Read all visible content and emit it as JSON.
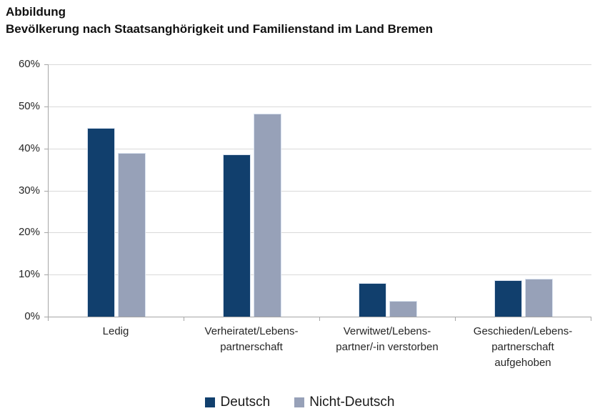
{
  "header": {
    "kicker": "Abbildung",
    "title": "Bevölkerung nach Staatsanghörigkeit und Familienstand im Land Bremen"
  },
  "colors": {
    "deutsch": "#113f6d",
    "nicht_deutsch": "#97a1b8",
    "bar_border": "#d9e2ef",
    "gridline": "#d9d9d9",
    "axis": "#a6a6a6"
  },
  "chart_data": {
    "type": "bar",
    "title": "Bevölkerung nach Staatsanghörigkeit und Familienstand im Land Bremen",
    "categories": [
      [
        "Ledig"
      ],
      [
        "Verheiratet/Lebens-",
        "partnerschaft"
      ],
      [
        "Verwitwet/Lebens-",
        "partner/-in verstorben"
      ],
      [
        "Geschieden/Lebens-",
        "partnerschaft",
        "aufgehoben"
      ]
    ],
    "series": [
      {
        "name": "Deutsch",
        "color": "#113f6d",
        "values": [
          44.8,
          38.5,
          8.0,
          8.7
        ]
      },
      {
        "name": "Nicht-Deutsch",
        "color": "#97a1b8",
        "values": [
          38.9,
          48.3,
          3.8,
          9.0
        ]
      }
    ],
    "xlabel": "",
    "ylabel": "",
    "ylim": [
      0,
      60
    ],
    "ytick_step": 10,
    "ytick_labels": [
      "0%",
      "10%",
      "20%",
      "30%",
      "40%",
      "50%",
      "60%"
    ],
    "grid": true,
    "legend_position": "bottom"
  }
}
